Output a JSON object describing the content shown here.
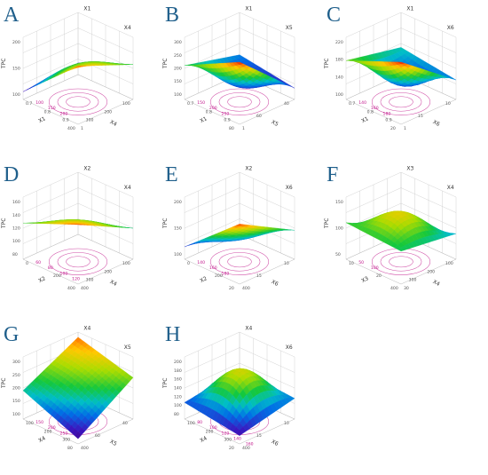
{
  "chart_data": [
    {
      "type": "surface3d",
      "label": "A",
      "xlabel": "X1",
      "ylabel": "X4",
      "zlabel": "TPC",
      "x_ticks": [
        "0.7",
        "0.8",
        "0.9",
        "1"
      ],
      "y_ticks": [
        "100",
        "200",
        "300",
        "400"
      ],
      "z_ticks": [
        "100",
        "150",
        "200"
      ],
      "contour_ticks": [
        "100",
        "150",
        "200"
      ],
      "zlim": [
        60,
        220
      ],
      "z_corners": {
        "x0y0": 90,
        "x1y0": 150,
        "x0y1": 80,
        "x1y1": 210
      },
      "z_bump": 20
    },
    {
      "type": "surface3d",
      "label": "B",
      "xlabel": "X1",
      "ylabel": "X5",
      "zlabel": "TPC",
      "x_ticks": [
        "0.7",
        "0.8",
        "0.9",
        "1"
      ],
      "y_ticks": [
        "40",
        "60",
        "80"
      ],
      "z_ticks": [
        "100",
        "150",
        "200",
        "250",
        "300"
      ],
      "contour_ticks": [
        "150",
        "200",
        "250"
      ],
      "zlim": [
        80,
        300
      ],
      "z_corners": {
        "x0y0": 150,
        "x1y0": 120,
        "x0y1": 200,
        "x1y1": 300
      },
      "z_bump": -70
    },
    {
      "type": "surface3d",
      "label": "C",
      "xlabel": "X1",
      "ylabel": "X6",
      "zlabel": "TPC",
      "x_ticks": [
        "0.7",
        "0.8",
        "0.9",
        "1"
      ],
      "y_ticks": [
        "10",
        "15",
        "20"
      ],
      "z_ticks": [
        "100",
        "140",
        "180",
        "220"
      ],
      "contour_ticks": [
        "140",
        "160",
        "180"
      ],
      "zlim": [
        80,
        240
      ],
      "z_corners": {
        "x0y0": 150,
        "x1y0": 130,
        "x0y1": 180,
        "x1y1": 240
      },
      "z_bump": -60
    },
    {
      "type": "surface3d",
      "label": "D",
      "xlabel": "X2",
      "ylabel": "X4",
      "zlabel": "TPC",
      "x_ticks": [
        "0",
        "200",
        "400"
      ],
      "y_ticks": [
        "100",
        "200",
        "300",
        "400"
      ],
      "z_ticks": [
        "80",
        "100",
        "120",
        "140",
        "160"
      ],
      "contour_ticks": [
        "60",
        "80",
        "100",
        "120"
      ],
      "zlim": [
        50,
        170
      ],
      "z_corners": {
        "x0y0": 70,
        "x1y0": 110,
        "x0y1": 120,
        "x1y1": 165
      },
      "z_bump": 10
    },
    {
      "type": "surface3d",
      "label": "E",
      "xlabel": "X2",
      "ylabel": "X6",
      "zlabel": "TPC",
      "x_ticks": [
        "0",
        "200",
        "400"
      ],
      "y_ticks": [
        "10",
        "15",
        "20"
      ],
      "z_ticks": [
        "100",
        "150",
        "200"
      ],
      "contour_ticks": [
        "140",
        "160",
        "180"
      ],
      "zlim": [
        80,
        230
      ],
      "z_corners": {
        "x0y0": 100,
        "x1y0": 150,
        "x0y1": 110,
        "x1y1": 225
      },
      "z_bump": -20
    },
    {
      "type": "surface3d",
      "label": "F",
      "xlabel": "X3",
      "ylabel": "X4",
      "zlabel": "TPC",
      "x_ticks": [
        "10",
        "20",
        "30"
      ],
      "y_ticks": [
        "100",
        "200",
        "300",
        "400"
      ],
      "z_ticks": [
        "50",
        "100",
        "150"
      ],
      "contour_ticks": [
        "50",
        "100"
      ],
      "zlim": [
        20,
        190
      ],
      "z_corners": {
        "x0y0": 40,
        "x1y0": 90,
        "x0y1": 120,
        "x1y1": 110
      },
      "z_bump": 60
    },
    {
      "type": "surface3d",
      "label": "G",
      "xlabel": "X4",
      "ylabel": "X5",
      "zlabel": "TPC",
      "x_ticks": [
        "100",
        "200",
        "300",
        "400"
      ],
      "y_ticks": [
        "40",
        "60",
        "80"
      ],
      "z_ticks": [
        "100",
        "150",
        "200",
        "250",
        "300"
      ],
      "contour_ticks": [
        "150",
        "200",
        "250"
      ],
      "zlim": [
        80,
        320
      ],
      "z_corners": {
        "x0y0": 300,
        "x1y0": 240,
        "x0y1": 190,
        "x1y1": 100
      },
      "z_bump": 15
    },
    {
      "type": "surface3d",
      "label": "H",
      "xlabel": "X4",
      "ylabel": "X6",
      "zlabel": "TPC",
      "x_ticks": [
        "100",
        "200",
        "300",
        "400"
      ],
      "y_ticks": [
        "10",
        "15",
        "20"
      ],
      "z_ticks": [
        "80",
        "100",
        "120",
        "140",
        "160",
        "180",
        "200"
      ],
      "contour_ticks": [
        "80",
        "100",
        "120",
        "140",
        "160"
      ],
      "zlim": [
        60,
        210
      ],
      "z_corners": {
        "x0y0": 120,
        "x1y0": 110,
        "x0y1": 100,
        "x1y1": 80
      },
      "z_bump": 70
    }
  ]
}
